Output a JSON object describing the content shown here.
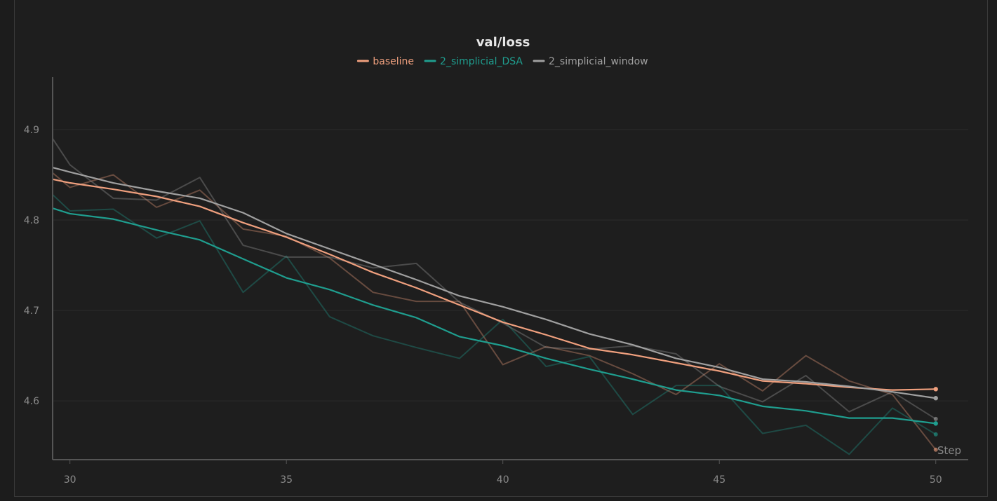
{
  "chart_data": {
    "type": "line",
    "title": "val/loss",
    "xlabel": "Step",
    "ylabel": "",
    "xlim": [
      29.6,
      50.75
    ],
    "ylim": [
      4.535,
      4.958
    ],
    "xticks": [
      30,
      35,
      40,
      45,
      50
    ],
    "yticks": [
      4.6,
      4.7,
      4.8,
      4.9
    ],
    "grid": true,
    "legend": "top-center",
    "x": [
      29.6,
      30,
      31,
      32,
      33,
      34,
      35,
      36,
      37,
      38,
      39,
      40,
      41,
      42,
      43,
      44,
      45,
      46,
      47,
      48,
      49,
      50
    ],
    "series": [
      {
        "name": "baseline",
        "color": "#f0a07e",
        "raw": [
          4.852,
          4.836,
          4.85,
          4.814,
          4.833,
          4.79,
          4.782,
          4.758,
          4.72,
          4.71,
          4.71,
          4.64,
          4.66,
          4.65,
          4.63,
          4.607,
          4.641,
          4.611,
          4.65,
          4.622,
          4.607,
          4.546
        ],
        "smoothed": [
          4.845,
          4.841,
          4.834,
          4.826,
          4.815,
          4.797,
          4.781,
          4.762,
          4.742,
          4.725,
          4.706,
          4.687,
          4.673,
          4.658,
          4.651,
          4.642,
          4.633,
          4.622,
          4.619,
          4.615,
          4.612,
          4.613
        ]
      },
      {
        "name": "2_simplicial_DSA",
        "color": "#1f9e8f",
        "raw": [
          4.828,
          4.81,
          4.812,
          4.78,
          4.799,
          4.72,
          4.76,
          4.693,
          4.672,
          4.659,
          4.647,
          4.69,
          4.638,
          4.649,
          4.585,
          4.617,
          4.617,
          4.564,
          4.573,
          4.541,
          4.592,
          4.563
        ],
        "smoothed": [
          4.813,
          4.807,
          4.801,
          4.789,
          4.778,
          4.757,
          4.736,
          4.723,
          4.706,
          4.692,
          4.671,
          4.661,
          4.647,
          4.635,
          4.624,
          4.612,
          4.606,
          4.594,
          4.589,
          4.581,
          4.581,
          4.575
        ]
      },
      {
        "name": "2_simplicial_window",
        "color": "#a0a0a0",
        "raw": [
          4.89,
          4.861,
          4.824,
          4.822,
          4.847,
          4.772,
          4.759,
          4.759,
          4.747,
          4.752,
          4.709,
          4.686,
          4.659,
          4.657,
          4.661,
          4.652,
          4.616,
          4.599,
          4.628,
          4.588,
          4.61,
          4.58
        ],
        "smoothed": [
          4.858,
          4.853,
          4.841,
          4.832,
          4.824,
          4.808,
          4.785,
          4.768,
          4.751,
          4.734,
          4.716,
          4.704,
          4.69,
          4.674,
          4.662,
          4.647,
          4.637,
          4.624,
          4.621,
          4.616,
          4.61,
          4.603
        ]
      }
    ]
  }
}
